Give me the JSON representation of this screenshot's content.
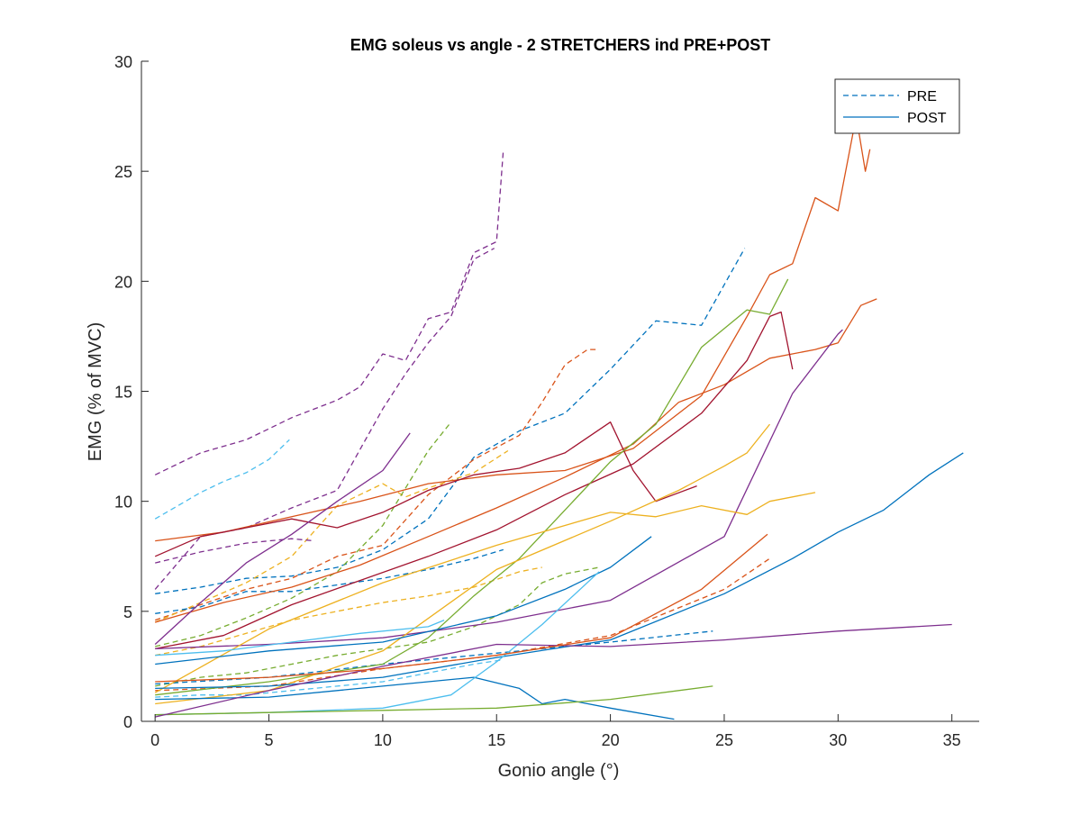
{
  "chart_data": {
    "type": "line",
    "title": "EMG soleus vs angle - 2 STRETCHERS ind PRE+POST",
    "xlabel": "Gonio angle (°)",
    "ylabel": "EMG (% of MVC)",
    "xlim": [
      -0.6,
      36.2
    ],
    "ylim": [
      0,
      30
    ],
    "xticks": [
      0,
      5,
      10,
      15,
      20,
      25,
      30,
      35
    ],
    "yticks": [
      0,
      5,
      10,
      15,
      20,
      25,
      30
    ],
    "grid": false,
    "legend": {
      "placement": "top-right",
      "entries": [
        {
          "label": "PRE",
          "style": "dashed",
          "color": "#0072BD"
        },
        {
          "label": "POST",
          "style": "solid",
          "color": "#0072BD"
        }
      ]
    },
    "series": [
      {
        "style": "dashed",
        "color": "#7E2F8E",
        "x": [
          0,
          2,
          4,
          6,
          8,
          9,
          10,
          11,
          12,
          13,
          14,
          15,
          15.3
        ],
        "y": [
          11.2,
          12.2,
          12.8,
          13.8,
          14.6,
          15.2,
          16.7,
          16.4,
          18.3,
          18.6,
          21.3,
          21.8,
          26.0
        ]
      },
      {
        "style": "dashed",
        "color": "#7E2F8E",
        "x": [
          0,
          1,
          2,
          4,
          6,
          8,
          10,
          11,
          12,
          13,
          14,
          14.9
        ],
        "y": [
          6.0,
          7.2,
          8.4,
          8.8,
          9.7,
          10.5,
          14.2,
          15.8,
          17.2,
          18.4,
          21.0,
          21.5
        ]
      },
      {
        "style": "dashed",
        "color": "#4DBEEE",
        "x": [
          0,
          1,
          2,
          3,
          4,
          5,
          5.9
        ],
        "y": [
          9.2,
          9.8,
          10.4,
          10.9,
          11.3,
          11.9,
          12.8
        ]
      },
      {
        "style": "dashed",
        "color": "#0072BD",
        "x": [
          0,
          2,
          4,
          6,
          8,
          10,
          12,
          14,
          16,
          18,
          20,
          22,
          24,
          25.9
        ],
        "y": [
          5.8,
          6.1,
          6.5,
          6.6,
          7.0,
          7.8,
          9.2,
          12.0,
          13.2,
          14.0,
          16.0,
          18.2,
          18.0,
          21.5
        ]
      },
      {
        "style": "dashed",
        "color": "#D95319",
        "x": [
          0,
          2,
          4,
          6,
          8,
          10,
          12,
          14,
          16,
          17,
          18,
          19,
          19.5
        ],
        "y": [
          4.6,
          5.3,
          6.0,
          6.5,
          7.5,
          8.0,
          10.3,
          11.9,
          13.0,
          14.5,
          16.2,
          16.9,
          16.9
        ]
      },
      {
        "style": "dashed",
        "color": "#EDB120",
        "x": [
          0,
          2,
          4,
          6,
          8,
          10,
          11,
          12,
          14,
          15.5
        ],
        "y": [
          4.5,
          5.4,
          6.3,
          7.5,
          9.8,
          10.8,
          10.2,
          10.6,
          11.3,
          12.3
        ]
      },
      {
        "style": "dashed",
        "color": "#77AC30",
        "x": [
          0,
          2,
          4,
          6,
          8,
          10,
          12,
          13
        ],
        "y": [
          3.4,
          3.9,
          4.7,
          5.6,
          6.8,
          8.9,
          12.3,
          13.6
        ]
      },
      {
        "style": "dashed",
        "color": "#0072BD",
        "x": [
          0,
          2,
          4,
          6,
          8,
          10,
          12,
          14,
          15.3
        ],
        "y": [
          4.9,
          5.2,
          5.9,
          5.9,
          6.2,
          6.5,
          6.9,
          7.4,
          7.8
        ]
      },
      {
        "style": "dashed",
        "color": "#EDB120",
        "x": [
          0,
          2,
          4,
          6,
          8,
          10,
          12,
          14,
          16,
          17
        ],
        "y": [
          3.0,
          3.4,
          4.0,
          4.6,
          5.0,
          5.4,
          5.7,
          6.1,
          6.8,
          7.0
        ]
      },
      {
        "style": "dashed",
        "color": "#77AC30",
        "x": [
          0,
          2,
          4,
          6,
          8,
          10,
          12,
          14,
          16,
          17,
          18,
          19.5
        ],
        "y": [
          1.6,
          2.0,
          2.2,
          2.6,
          3.0,
          3.3,
          3.6,
          4.3,
          5.3,
          6.3,
          6.7,
          7.0
        ]
      },
      {
        "style": "dashed",
        "color": "#7E2F8E",
        "x": [
          0,
          2,
          4,
          6,
          7
        ],
        "y": [
          7.2,
          7.7,
          8.1,
          8.3,
          8.2
        ]
      },
      {
        "style": "dashed",
        "color": "#D95319",
        "x": [
          0,
          5,
          10,
          15,
          20,
          25,
          27
        ],
        "y": [
          1.4,
          1.6,
          2.4,
          3.0,
          3.9,
          6.0,
          7.4
        ]
      },
      {
        "style": "dashed",
        "color": "#4DBEEE",
        "x": [
          0,
          2,
          4,
          6,
          8,
          10,
          12,
          14,
          15.3
        ],
        "y": [
          1.1,
          1.2,
          1.2,
          1.4,
          1.6,
          1.8,
          2.2,
          2.6,
          2.8
        ]
      },
      {
        "style": "dashed",
        "color": "#0072BD",
        "x": [
          0,
          5,
          10,
          15,
          20,
          24.5
        ],
        "y": [
          1.7,
          2.0,
          2.6,
          3.1,
          3.6,
          4.1
        ]
      },
      {
        "style": "solid",
        "color": "#D95319",
        "x": [
          0,
          3,
          6,
          9,
          12,
          15,
          18,
          21,
          24,
          26,
          27,
          28,
          29,
          30,
          30.8,
          31.2,
          31.4
        ],
        "y": [
          8.2,
          8.6,
          9.3,
          10.0,
          10.8,
          11.2,
          11.4,
          12.4,
          14.8,
          18.4,
          20.3,
          20.8,
          23.8,
          23.2,
          27.5,
          25.0,
          26.0
        ]
      },
      {
        "style": "solid",
        "color": "#D95319",
        "x": [
          0,
          3,
          6,
          9,
          12,
          15,
          18,
          21,
          23,
          25,
          27,
          29,
          30,
          31,
          31.7
        ],
        "y": [
          4.5,
          5.4,
          6.1,
          7.1,
          8.4,
          9.7,
          11.1,
          12.6,
          14.5,
          15.3,
          16.5,
          16.9,
          17.2,
          18.9,
          19.2
        ]
      },
      {
        "style": "solid",
        "color": "#A2142F",
        "x": [
          0,
          3,
          6,
          9,
          12,
          15,
          18,
          21,
          24,
          26,
          27,
          27.5,
          28
        ],
        "y": [
          3.3,
          3.9,
          5.3,
          6.4,
          7.5,
          8.7,
          10.3,
          11.7,
          14.0,
          16.4,
          18.4,
          18.6,
          16.0
        ]
      },
      {
        "style": "solid",
        "color": "#A2142F",
        "x": [
          0,
          2,
          4,
          6,
          8,
          10,
          12,
          14,
          16,
          18,
          20,
          21,
          22,
          23.8
        ],
        "y": [
          7.5,
          8.4,
          8.8,
          9.2,
          8.8,
          9.5,
          10.5,
          11.2,
          11.5,
          12.2,
          13.6,
          11.4,
          10.0,
          10.7
        ]
      },
      {
        "style": "solid",
        "color": "#7E2F8E",
        "x": [
          0,
          2,
          4,
          6,
          8,
          10,
          11.2
        ],
        "y": [
          3.5,
          5.4,
          7.2,
          8.5,
          10.0,
          11.4,
          13.1
        ]
      },
      {
        "style": "solid",
        "color": "#7E2F8E",
        "x": [
          0,
          5,
          10,
          15,
          20,
          25,
          28,
          30,
          30.2
        ],
        "y": [
          3.3,
          3.5,
          3.8,
          4.5,
          5.5,
          8.4,
          14.9,
          17.6,
          17.8
        ]
      },
      {
        "style": "solid",
        "color": "#77AC30",
        "x": [
          0,
          5,
          10,
          12,
          14,
          16,
          18,
          20,
          22,
          24,
          26,
          27,
          27.8
        ],
        "y": [
          1.2,
          1.8,
          2.6,
          3.8,
          5.7,
          7.4,
          9.6,
          11.8,
          13.5,
          17.0,
          18.7,
          18.5,
          20.1
        ]
      },
      {
        "style": "solid",
        "color": "#EDB120",
        "x": [
          0,
          5,
          10,
          15,
          20,
          23,
          25,
          26,
          27
        ],
        "y": [
          0.8,
          1.4,
          3.2,
          6.9,
          9.1,
          10.5,
          11.6,
          12.2,
          13.5
        ]
      },
      {
        "style": "solid",
        "color": "#EDB120",
        "x": [
          0,
          5,
          10,
          15,
          20,
          22,
          24,
          26,
          27,
          29
        ],
        "y": [
          1.3,
          4.2,
          6.3,
          8.0,
          9.5,
          9.3,
          9.8,
          9.4,
          10.0,
          10.4
        ]
      },
      {
        "style": "solid",
        "color": "#0072BD",
        "x": [
          0,
          5,
          10,
          15,
          20,
          25,
          28,
          30,
          32,
          34,
          35.5
        ],
        "y": [
          1.5,
          1.6,
          2.0,
          2.9,
          3.7,
          5.8,
          7.4,
          8.6,
          9.6,
          11.2,
          12.2
        ]
      },
      {
        "style": "solid",
        "color": "#0072BD",
        "x": [
          0,
          5,
          10,
          15,
          18,
          20,
          21.8
        ],
        "y": [
          2.6,
          3.2,
          3.6,
          4.8,
          6.0,
          7.0,
          8.4
        ]
      },
      {
        "style": "solid",
        "color": "#0072BD",
        "x": [
          0,
          5,
          10,
          14,
          16,
          17,
          18,
          20,
          22.8
        ],
        "y": [
          1.0,
          1.1,
          1.6,
          2.0,
          1.5,
          0.8,
          1.0,
          0.6,
          0.1
        ]
      },
      {
        "style": "solid",
        "color": "#4DBEEE",
        "x": [
          0,
          5,
          10,
          13,
          15,
          17,
          19.5
        ],
        "y": [
          0.3,
          0.4,
          0.6,
          1.2,
          2.7,
          4.4,
          6.8
        ]
      },
      {
        "style": "solid",
        "color": "#4DBEEE",
        "x": [
          0,
          3,
          6,
          9,
          12,
          12.7
        ],
        "y": [
          3.0,
          3.2,
          3.6,
          4.0,
          4.3,
          4.6
        ]
      },
      {
        "style": "solid",
        "color": "#77AC30",
        "x": [
          0,
          5,
          10,
          15,
          20,
          24.5
        ],
        "y": [
          0.3,
          0.4,
          0.5,
          0.6,
          1.0,
          1.6
        ]
      },
      {
        "style": "solid",
        "color": "#7E2F8E",
        "x": [
          0,
          5,
          10,
          15,
          20,
          25,
          30,
          35
        ],
        "y": [
          0.2,
          1.4,
          2.5,
          3.5,
          3.4,
          3.7,
          4.1,
          4.4
        ]
      },
      {
        "style": "solid",
        "color": "#D95319",
        "x": [
          0,
          5,
          10,
          15,
          20,
          24,
          26.9
        ],
        "y": [
          1.8,
          2.0,
          2.4,
          3.0,
          3.8,
          6.0,
          8.5
        ]
      }
    ]
  }
}
